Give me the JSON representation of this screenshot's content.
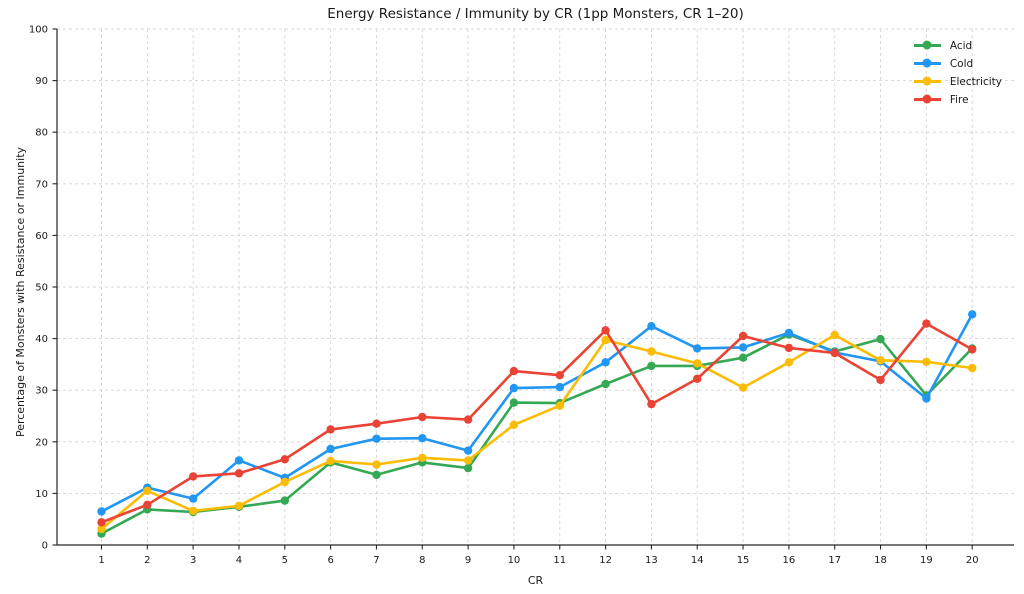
{
  "title": "Energy Resistance / Immunity by CR (1pp Monsters, CR 1–20)",
  "chart_data": {
    "type": "line",
    "title": "Energy Resistance / Immunity by CR (1pp Monsters, CR 1–20)",
    "xlabel": "CR",
    "ylabel": "Percentage of Monsters with Resistance or Immunity",
    "x": [
      1,
      2,
      3,
      4,
      5,
      6,
      7,
      8,
      9,
      10,
      11,
      12,
      13,
      14,
      15,
      16,
      17,
      18,
      19,
      20
    ],
    "ylim": [
      0,
      100
    ],
    "yticks": [
      0,
      10,
      20,
      30,
      40,
      50,
      60,
      70,
      80,
      90,
      100
    ],
    "grid": "dashed both axes",
    "legend_position": "upper right",
    "series": [
      {
        "name": "Acid",
        "color": "#34A853",
        "values": [
          2.2,
          6.9,
          6.4,
          7.4,
          8.6,
          16.0,
          13.6,
          16.0,
          14.9,
          27.6,
          27.5,
          31.2,
          34.7,
          34.7,
          36.3,
          40.8,
          37.5,
          39.9,
          29.0,
          38.1
        ]
      },
      {
        "name": "Cold",
        "color": "#2196F3",
        "values": [
          6.5,
          11.1,
          9.0,
          16.4,
          13.0,
          18.6,
          20.6,
          20.7,
          18.3,
          30.4,
          30.6,
          35.4,
          42.4,
          38.1,
          38.3,
          41.1,
          37.3,
          35.6,
          28.4,
          44.7
        ]
      },
      {
        "name": "Electricity",
        "color": "#FBBC05",
        "values": [
          3.1,
          10.5,
          6.6,
          7.6,
          12.2,
          16.3,
          15.6,
          16.9,
          16.4,
          23.3,
          27.0,
          39.7,
          37.5,
          35.2,
          30.5,
          35.4,
          40.7,
          35.8,
          35.5,
          34.3
        ]
      },
      {
        "name": "Fire",
        "color": "#EA4335",
        "values": [
          4.4,
          7.8,
          13.3,
          13.9,
          16.6,
          22.4,
          23.5,
          24.8,
          24.3,
          33.7,
          32.9,
          41.6,
          27.3,
          32.2,
          40.5,
          38.2,
          37.2,
          32.0,
          42.9,
          37.9
        ]
      }
    ],
    "style": {
      "grid_color": "#d4d4d4",
      "spine_color": "#262626",
      "tick_label_color": "#1a1a1a",
      "background": "#ffffff"
    }
  }
}
